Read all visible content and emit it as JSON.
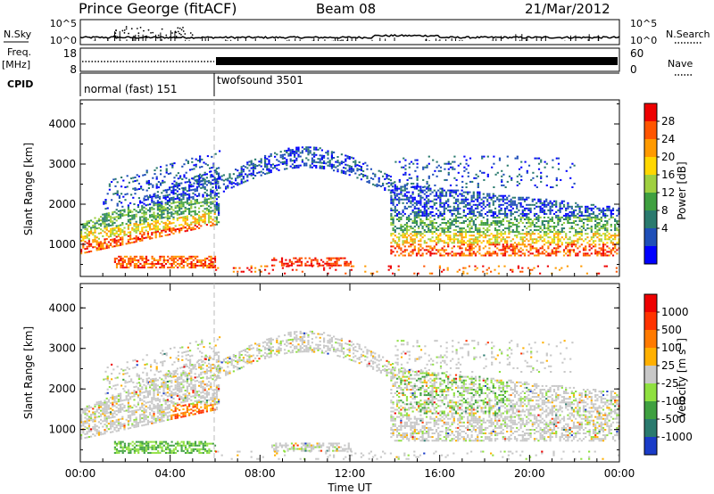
{
  "header": {
    "title": "Prince George (fitACF)",
    "beam": "Beam 08",
    "date": "21/Mar/2012"
  },
  "strip": {
    "nsky_label": "N.Sky",
    "nsky_ticks": [
      "10^5",
      "10^0"
    ],
    "nsky_right_ticks": [
      "10^5",
      "10^0"
    ],
    "nsearch_label": "N.Search",
    "freq_label": "Freq.",
    "freq_unit": "[MHz]",
    "freq_ticks": [
      "18",
      "8"
    ],
    "nave_ticks": [
      "60",
      "0"
    ],
    "nave_label": "Nave",
    "cpid_label": "CPID",
    "cpid_modes": [
      {
        "name": "normal (fast) 151",
        "start_hour": 0,
        "end_hour": 6
      },
      {
        "name": "twofsound 3501",
        "start_hour": 6,
        "end_hour": 24
      }
    ]
  },
  "chart_data": [
    {
      "type": "heatmap",
      "panel": "power",
      "ylabel": "Slant Range [km]",
      "xlim": [
        0,
        24
      ],
      "ylim": [
        200,
        4600
      ],
      "yticks": [
        "1000",
        "2000",
        "3000",
        "4000"
      ],
      "colorbar_label": "Power [dB]",
      "colorbar_ticks": [
        "28",
        "24",
        "20",
        "16",
        "12",
        "8",
        "4"
      ],
      "colorbar_range": [
        0,
        32
      ],
      "colors": [
        "#0000ff",
        "#1f4fb8",
        "#2a7a6e",
        "#3fa040",
        "#9fd040",
        "#ffd700",
        "#ff9a00",
        "#ff5500",
        "#ee0000"
      ]
    },
    {
      "type": "heatmap",
      "panel": "velocity",
      "ylabel": "Slant Range [km]",
      "xlabel": "Time UT",
      "xlim": [
        0,
        24
      ],
      "ylim": [
        200,
        4600
      ],
      "xticks": [
        "00:00",
        "04:00",
        "08:00",
        "12:00",
        "16:00",
        "20:00",
        "00:00"
      ],
      "yticks": [
        "1000",
        "2000",
        "3000",
        "4000"
      ],
      "colorbar_label": "Velocity [m s",
      "colorbar_label_sup": "-1",
      "colorbar_label_end": "]",
      "colorbar_ticks": [
        "1000",
        "500",
        "100",
        "25",
        "-25",
        "-100",
        "-500",
        "-1000"
      ],
      "colors": [
        "#1a3cc8",
        "#2a7a6e",
        "#3fa040",
        "#8fe040",
        "#c8c8c8",
        "#ffb000",
        "#ff7a00",
        "#ff3300",
        "#ee0000"
      ]
    }
  ]
}
